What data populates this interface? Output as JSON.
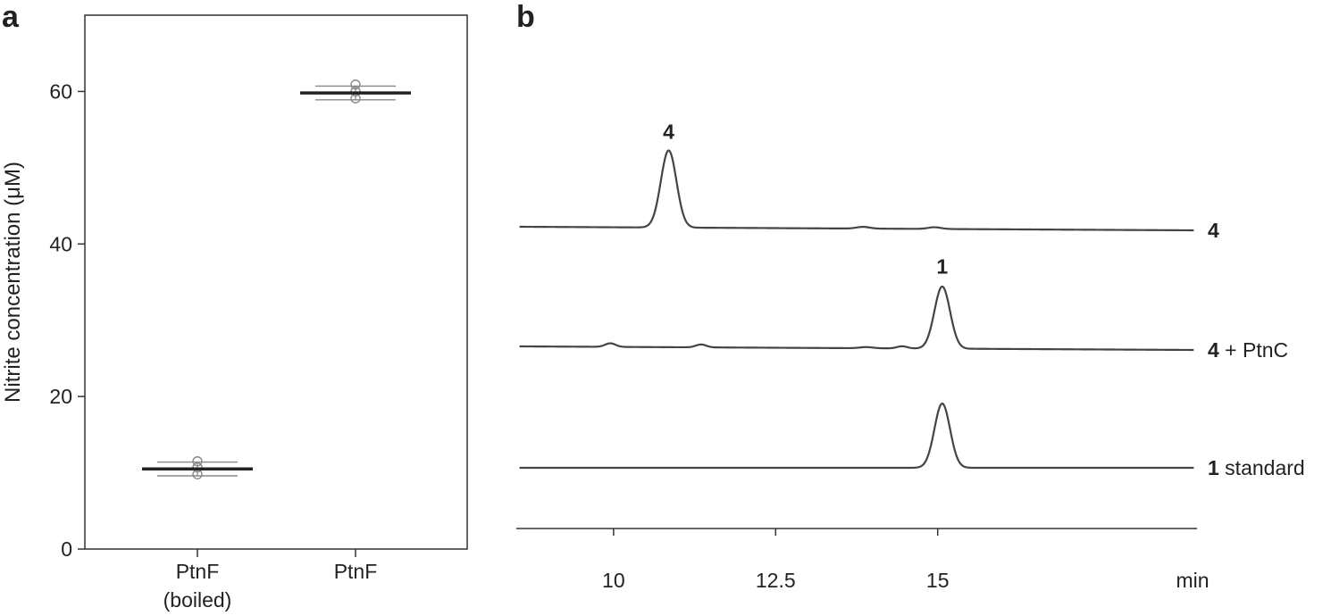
{
  "figure": {
    "panels": [
      "a",
      "b"
    ]
  },
  "chart_data": [
    {
      "panel": "a",
      "type": "scatter",
      "ylabel": "Nitrite concentration (μM)",
      "ylim": [
        0,
        70
      ],
      "yticks": [
        0,
        20,
        40,
        60
      ],
      "categories": [
        {
          "line1": "PtnF",
          "line2": "(boiled)"
        },
        {
          "line1": "PtnF",
          "line2": ""
        }
      ],
      "groups": [
        {
          "mean": 10.5,
          "sd_low": 9.6,
          "sd_high": 11.4,
          "points": [
            11.5,
            10.7,
            9.8
          ]
        },
        {
          "mean": 59.8,
          "sd_low": 58.9,
          "sd_high": 60.7,
          "points": [
            60.9,
            60.0,
            59.1
          ]
        }
      ],
      "colors": {
        "mean": "#222222",
        "sd": "#888888",
        "points": "#888888"
      }
    },
    {
      "panel": "b",
      "type": "line",
      "xlabel": "min",
      "xlim": [
        8.5,
        19.0
      ],
      "xticks": [
        10,
        12.5,
        15
      ],
      "xtick_labels": [
        "10",
        "12.5",
        "15"
      ],
      "series": [
        {
          "label_bold": "4",
          "label_rest": "",
          "baseline_start": 0.25,
          "baseline_end": 0.0,
          "peaks": [
            {
              "t": 10.85,
              "h": 5.4,
              "w": 0.12
            },
            {
              "t": 13.85,
              "h": 0.12,
              "w": 0.1
            },
            {
              "t": 14.95,
              "h": 0.12,
              "w": 0.1
            }
          ],
          "annotations": [
            {
              "t": 10.85,
              "text": "4"
            }
          ]
        },
        {
          "label_bold": "4",
          "label_rest": " + PtnC",
          "baseline_start": 0.25,
          "baseline_end": 0.0,
          "peaks": [
            {
              "t": 9.95,
              "h": 0.25,
              "w": 0.08
            },
            {
              "t": 11.35,
              "h": 0.2,
              "w": 0.08
            },
            {
              "t": 13.9,
              "h": 0.08,
              "w": 0.1
            },
            {
              "t": 14.45,
              "h": 0.15,
              "w": 0.08
            },
            {
              "t": 15.07,
              "h": 4.35,
              "w": 0.12
            }
          ],
          "annotations": [
            {
              "t": 15.07,
              "text": "1"
            }
          ]
        },
        {
          "label_bold": "1",
          "label_rest": " standard",
          "baseline_start": 0.0,
          "baseline_end": 0.0,
          "peaks": [
            {
              "t": 15.07,
              "h": 4.5,
              "w": 0.12
            }
          ],
          "annotations": []
        }
      ],
      "colors": {
        "trace": "#444444",
        "axis": "#333333"
      }
    }
  ]
}
